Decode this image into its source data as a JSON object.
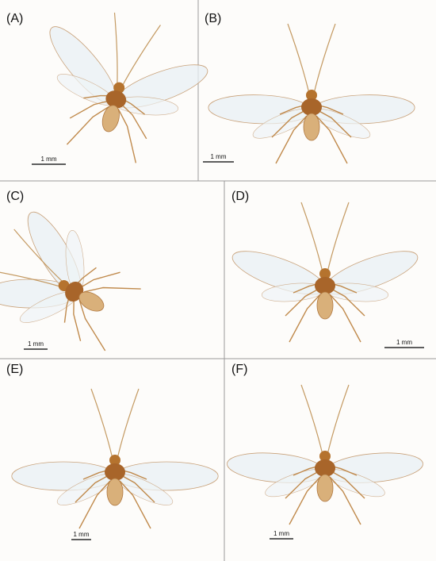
{
  "panels": [
    {
      "label": "(A)",
      "scale": "1 mm"
    },
    {
      "label": "(B)",
      "scale": "1 mm"
    },
    {
      "label": "(C)",
      "scale": "1 mm"
    },
    {
      "label": "(D)",
      "scale": "1 mm"
    },
    {
      "label": "(E)",
      "scale": "1 mm"
    },
    {
      "label": "(F)",
      "scale": "1 mm"
    }
  ]
}
